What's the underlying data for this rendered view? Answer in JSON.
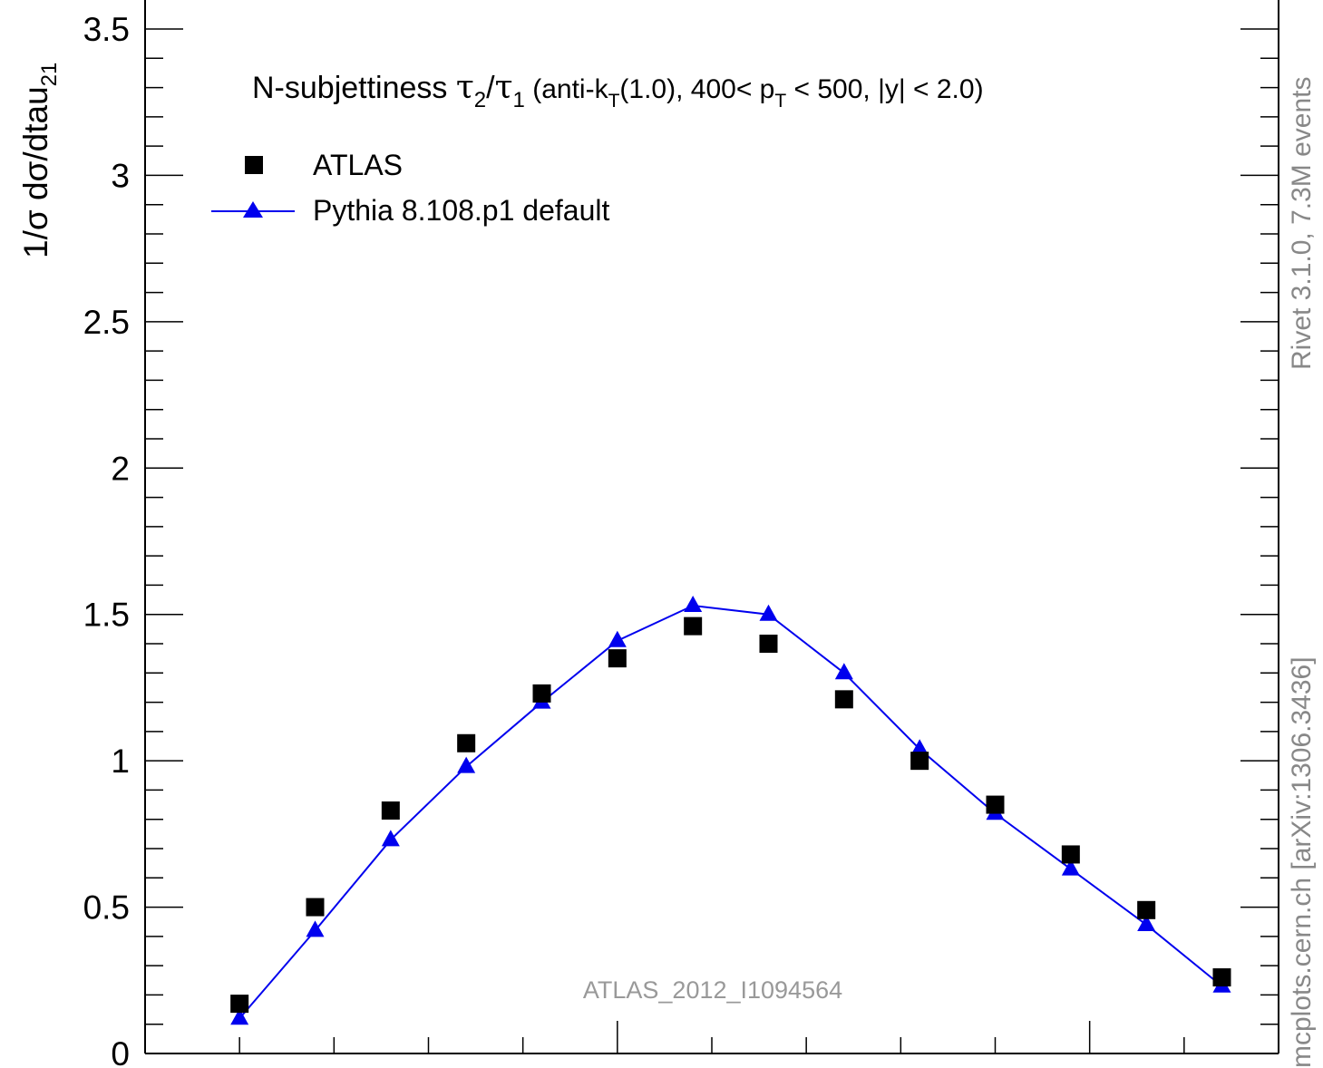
{
  "chart_data": {
    "type": "scatter",
    "title": {
      "prefix": "N-subjettiness ",
      "tau": "τ",
      "sub2": "2",
      "slash": "/",
      "sub1": "1",
      "mid": " (anti-k",
      "subT": "T",
      "mid2": "(1.0), 400< p",
      "subT2": "T",
      "end": " < 500, |y| < 2.0)"
    },
    "ylabel": {
      "main": "1/σ dσ/dtau",
      "sub": "21"
    },
    "xlim": [
      0,
      1.2
    ],
    "ylim": [
      0,
      3.5
    ],
    "yticks": [
      {
        "value": 0,
        "label": "0"
      },
      {
        "value": 0.5,
        "label": "0.5"
      },
      {
        "value": 1,
        "label": "1"
      },
      {
        "value": 1.5,
        "label": "1.5"
      },
      {
        "value": 2,
        "label": "2"
      },
      {
        "value": 2.5,
        "label": "2.5"
      },
      {
        "value": 3,
        "label": "3"
      },
      {
        "value": 3.5,
        "label": "3.5"
      }
    ],
    "legend_position": "top-left",
    "series": [
      {
        "name": "ATLAS",
        "marker": "square",
        "color": "#000000",
        "x": [
          0.1,
          0.18,
          0.26,
          0.34,
          0.42,
          0.5,
          0.58,
          0.66,
          0.74,
          0.82,
          0.9,
          0.98,
          1.06,
          1.14
        ],
        "values": [
          0.17,
          0.5,
          0.83,
          1.06,
          1.23,
          1.35,
          1.46,
          1.4,
          1.21,
          1.0,
          0.85,
          0.68,
          0.49,
          0.26
        ]
      },
      {
        "name": "Pythia 8.108.p1 default",
        "marker": "triangle",
        "line": true,
        "color": "#0000ee",
        "x": [
          0.1,
          0.18,
          0.26,
          0.34,
          0.42,
          0.5,
          0.58,
          0.66,
          0.74,
          0.82,
          0.9,
          0.98,
          1.06,
          1.14
        ],
        "values": [
          0.12,
          0.42,
          0.73,
          0.98,
          1.2,
          1.41,
          1.53,
          1.5,
          1.3,
          1.04,
          0.82,
          0.63,
          0.44,
          0.23
        ]
      }
    ],
    "annotations": {
      "analysis": "ATLAS_2012_I1094564",
      "rivet": "Rivet 3.1.0,  7.3M events",
      "mcplots": "mcplots.cern.ch [arXiv:1306.3436]"
    }
  }
}
